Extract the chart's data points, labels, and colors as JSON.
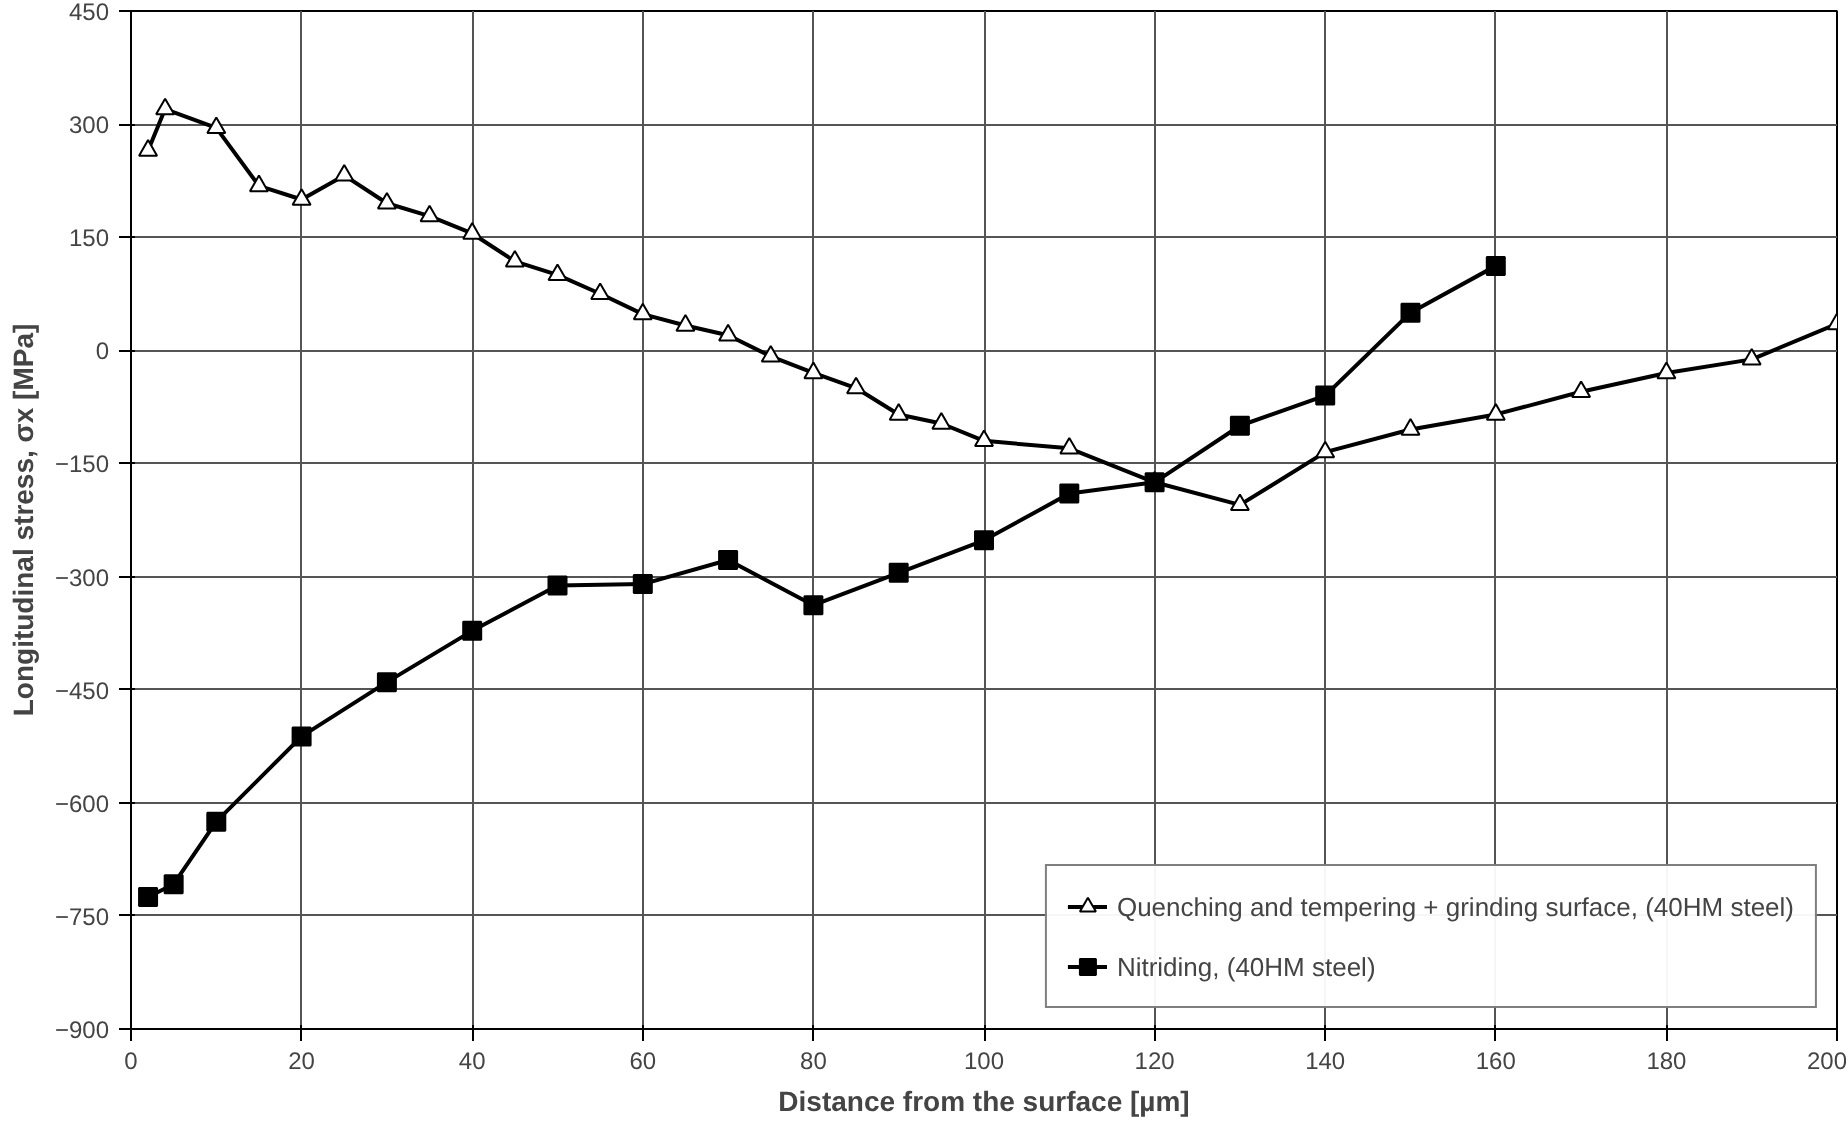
{
  "chart_data": {
    "type": "line",
    "xlabel": "Distance from the surface [µm]",
    "ylabel": "Longitudinal stress, σx [MPa]",
    "xlim": [
      0,
      200
    ],
    "xticks": [
      0,
      20,
      40,
      60,
      80,
      100,
      120,
      140,
      160,
      180,
      200
    ],
    "ylim": [
      -900,
      450
    ],
    "yticks": [
      -900,
      -750,
      -600,
      -450,
      -300,
      -150,
      0,
      150,
      300,
      450
    ],
    "grid": true,
    "legend": "bottom right",
    "line_style": "solid",
    "series": [
      {
        "name": "Quenching and tempering + grinding surface, (40HM steel)",
        "color": "#000000",
        "marker": "triangle",
        "x": [
          2,
          4,
          10,
          15,
          20,
          25,
          30,
          35,
          40,
          45,
          50,
          55,
          60,
          65,
          70,
          75,
          80,
          85,
          90,
          95,
          100,
          110,
          120,
          130,
          140,
          150,
          160,
          170,
          180,
          190,
          200
        ],
        "values": [
          265,
          320,
          295,
          218,
          200,
          232,
          195,
          178,
          155,
          118,
          100,
          75,
          48,
          33,
          20,
          -8,
          -30,
          -50,
          -85,
          -97,
          -120,
          -130,
          -175,
          -205,
          -135,
          -105,
          -85,
          -55,
          -30,
          -12,
          35
        ]
      },
      {
        "name": "Nitriding, (40HM steel)",
        "color": "#000000",
        "marker": "square",
        "x": [
          2,
          5,
          10,
          20,
          30,
          40,
          50,
          60,
          70,
          80,
          90,
          100,
          110,
          120,
          130,
          140,
          150,
          160
        ],
        "values": [
          -725,
          -708,
          -625,
          -512,
          -440,
          -372,
          -312,
          -310,
          -278,
          -338,
          -295,
          -252,
          -190,
          -175,
          -100,
          -60,
          50,
          112
        ]
      }
    ]
  }
}
